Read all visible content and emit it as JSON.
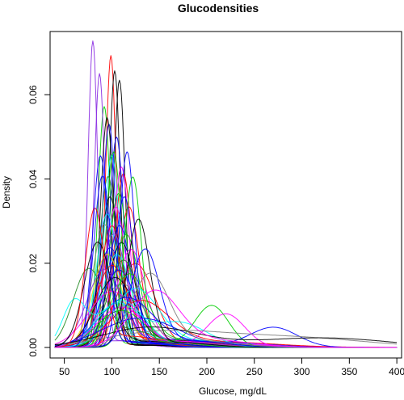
{
  "chart_data": {
    "type": "line",
    "title": "Glucodensities",
    "xlabel": "Glucose, mg/dL",
    "ylabel": "Density",
    "xlim": [
      35,
      405
    ],
    "ylim": [
      -0.0025,
      0.075
    ],
    "xticks": [
      50,
      100,
      150,
      200,
      250,
      300,
      350,
      400
    ],
    "yticks": [
      0.0,
      0.02,
      0.04,
      0.06
    ],
    "ytick_labels": [
      "0.00",
      "0.02",
      "0.04",
      "0.06"
    ],
    "grid": false,
    "legend": "none",
    "x_range_of_curves": [
      40,
      400
    ],
    "palette": [
      "#000000",
      "#FF0000",
      "#00CD00",
      "#0000FF",
      "#00FFFF",
      "#FF00FF",
      "#FFD700",
      "#808080",
      "#8A2BE2",
      "#228B22"
    ],
    "series": [
      {
        "components": [
          {
            "mu": 92,
            "sigma": 6.5,
            "w": 0.92
          },
          {
            "mu": 115,
            "sigma": 35,
            "w": 0.08
          }
        ],
        "color": "#00CD00"
      },
      {
        "components": [
          {
            "mu": 80,
            "sigma": 5,
            "w": 0.9
          },
          {
            "mu": 105,
            "sigma": 25,
            "w": 0.1
          }
        ],
        "color": "#8A2BE2"
      },
      {
        "components": [
          {
            "mu": 87,
            "sigma": 5.5,
            "w": 0.88
          },
          {
            "mu": 110,
            "sigma": 30,
            "w": 0.12
          }
        ],
        "color": "#8A2BE2"
      },
      {
        "components": [
          {
            "mu": 99,
            "sigma": 5.5,
            "w": 0.95
          },
          {
            "mu": 130,
            "sigma": 30,
            "w": 0.05
          }
        ],
        "color": "#FF0000"
      },
      {
        "components": [
          {
            "mu": 103,
            "sigma": 5.8,
            "w": 0.95
          },
          {
            "mu": 140,
            "sigma": 40,
            "w": 0.05
          }
        ],
        "color": "#000000"
      },
      {
        "components": [
          {
            "mu": 108,
            "sigma": 6,
            "w": 0.95
          },
          {
            "mu": 150,
            "sigma": 40,
            "w": 0.05
          }
        ],
        "color": "#000000"
      },
      {
        "components": [
          {
            "mu": 97,
            "sigma": 7,
            "w": 0.92
          },
          {
            "mu": 130,
            "sigma": 30,
            "w": 0.08
          }
        ],
        "color": "#0000FF"
      },
      {
        "components": [
          {
            "mu": 95,
            "sigma": 7,
            "w": 0.95
          },
          {
            "mu": 125,
            "sigma": 30,
            "w": 0.05
          }
        ],
        "color": "#000000"
      },
      {
        "components": [
          {
            "mu": 118,
            "sigma": 11,
            "w": 0.9
          },
          {
            "mu": 150,
            "sigma": 35,
            "w": 0.1
          }
        ],
        "color": "#FF0000"
      },
      {
        "components": [
          {
            "mu": 112,
            "sigma": 9,
            "w": 0.92
          },
          {
            "mu": 150,
            "sigma": 30,
            "w": 0.08
          }
        ],
        "color": "#FF0000"
      },
      {
        "components": [
          {
            "mu": 125,
            "sigma": 20,
            "w": 1.0
          }
        ],
        "color": "#FF0000"
      },
      {
        "components": [
          {
            "mu": 100,
            "sigma": 8,
            "w": 0.9
          },
          {
            "mu": 130,
            "sigma": 30,
            "w": 0.1
          }
        ],
        "color": "#00FFFF"
      },
      {
        "components": [
          {
            "mu": 105,
            "sigma": 7.5,
            "w": 0.93
          },
          {
            "mu": 140,
            "sigma": 35,
            "w": 0.07
          }
        ],
        "color": "#0000FF"
      },
      {
        "components": [
          {
            "mu": 102,
            "sigma": 8,
            "w": 0.92
          },
          {
            "mu": 135,
            "sigma": 30,
            "w": 0.08
          }
        ],
        "color": "#00CD00"
      },
      {
        "components": [
          {
            "mu": 110,
            "sigma": 8.5,
            "w": 0.9
          },
          {
            "mu": 150,
            "sigma": 35,
            "w": 0.1
          }
        ],
        "color": "#FF00FF"
      },
      {
        "components": [
          {
            "mu": 96,
            "sigma": 9,
            "w": 0.9
          },
          {
            "mu": 130,
            "sigma": 35,
            "w": 0.1
          }
        ],
        "color": "#228B22"
      },
      {
        "components": [
          {
            "mu": 90,
            "sigma": 9,
            "w": 0.9
          },
          {
            "mu": 120,
            "sigma": 30,
            "w": 0.1
          }
        ],
        "color": "#0000FF"
      },
      {
        "components": [
          {
            "mu": 98,
            "sigma": 10,
            "w": 0.88
          },
          {
            "mu": 140,
            "sigma": 35,
            "w": 0.12
          }
        ],
        "color": "#000000"
      },
      {
        "components": [
          {
            "mu": 107,
            "sigma": 10,
            "w": 0.9
          },
          {
            "mu": 145,
            "sigma": 35,
            "w": 0.1
          }
        ],
        "color": "#00CD00"
      },
      {
        "components": [
          {
            "mu": 113,
            "sigma": 10,
            "w": 0.88
          },
          {
            "mu": 155,
            "sigma": 35,
            "w": 0.12
          }
        ],
        "color": "#0000FF"
      },
      {
        "components": [
          {
            "mu": 104,
            "sigma": 11,
            "w": 0.9
          },
          {
            "mu": 140,
            "sigma": 35,
            "w": 0.1
          }
        ],
        "color": "#FF00FF"
      },
      {
        "components": [
          {
            "mu": 95,
            "sigma": 11,
            "w": 0.85
          },
          {
            "mu": 135,
            "sigma": 35,
            "w": 0.15
          }
        ],
        "color": "#00FFFF"
      },
      {
        "components": [
          {
            "mu": 100,
            "sigma": 12,
            "w": 0.85
          },
          {
            "mu": 150,
            "sigma": 35,
            "w": 0.15
          }
        ],
        "color": "#FF0000"
      },
      {
        "components": [
          {
            "mu": 108,
            "sigma": 12,
            "w": 0.85
          },
          {
            "mu": 155,
            "sigma": 35,
            "w": 0.15
          }
        ],
        "color": "#0000FF"
      },
      {
        "components": [
          {
            "mu": 115,
            "sigma": 13,
            "w": 0.85
          },
          {
            "mu": 160,
            "sigma": 35,
            "w": 0.15
          }
        ],
        "color": "#00CD00"
      },
      {
        "components": [
          {
            "mu": 92,
            "sigma": 12,
            "w": 0.85
          },
          {
            "mu": 130,
            "sigma": 35,
            "w": 0.15
          }
        ],
        "color": "#808080"
      },
      {
        "components": [
          {
            "mu": 102,
            "sigma": 13,
            "w": 0.85
          },
          {
            "mu": 145,
            "sigma": 40,
            "w": 0.15
          }
        ],
        "color": "#8A2BE2"
      },
      {
        "components": [
          {
            "mu": 110,
            "sigma": 14,
            "w": 0.85
          },
          {
            "mu": 160,
            "sigma": 40,
            "w": 0.15
          }
        ],
        "color": "#000000"
      },
      {
        "components": [
          {
            "mu": 98,
            "sigma": 14,
            "w": 0.8
          },
          {
            "mu": 150,
            "sigma": 40,
            "w": 0.2
          }
        ],
        "color": "#0000FF"
      },
      {
        "components": [
          {
            "mu": 120,
            "sigma": 15,
            "w": 0.85
          },
          {
            "mu": 170,
            "sigma": 40,
            "w": 0.15
          }
        ],
        "color": "#FF00FF"
      },
      {
        "components": [
          {
            "mu": 105,
            "sigma": 15,
            "w": 0.8
          },
          {
            "mu": 160,
            "sigma": 40,
            "w": 0.2
          }
        ],
        "color": "#00FFFF"
      },
      {
        "components": [
          {
            "mu": 95,
            "sigma": 15,
            "w": 0.8
          },
          {
            "mu": 150,
            "sigma": 45,
            "w": 0.2
          }
        ],
        "color": "#FFD700"
      },
      {
        "components": [
          {
            "mu": 112,
            "sigma": 16,
            "w": 0.8
          },
          {
            "mu": 170,
            "sigma": 45,
            "w": 0.2
          }
        ],
        "color": "#228B22"
      },
      {
        "components": [
          {
            "mu": 100,
            "sigma": 17,
            "w": 0.8
          },
          {
            "mu": 160,
            "sigma": 45,
            "w": 0.2
          }
        ],
        "color": "#FF0000"
      },
      {
        "components": [
          {
            "mu": 107,
            "sigma": 18,
            "w": 0.8
          },
          {
            "mu": 170,
            "sigma": 45,
            "w": 0.2
          }
        ],
        "color": "#0000FF"
      },
      {
        "components": [
          {
            "mu": 118,
            "sigma": 19,
            "w": 0.8
          },
          {
            "mu": 180,
            "sigma": 45,
            "w": 0.2
          }
        ],
        "color": "#00CD00"
      },
      {
        "components": [
          {
            "mu": 103,
            "sigma": 20,
            "w": 0.8
          },
          {
            "mu": 170,
            "sigma": 50,
            "w": 0.2
          }
        ],
        "color": "#000000"
      },
      {
        "components": [
          {
            "mu": 92,
            "sigma": 18,
            "w": 0.8
          },
          {
            "mu": 150,
            "sigma": 50,
            "w": 0.2
          }
        ],
        "color": "#8A2BE2"
      },
      {
        "components": [
          {
            "mu": 110,
            "sigma": 22,
            "w": 0.8
          },
          {
            "mu": 180,
            "sigma": 50,
            "w": 0.2
          }
        ],
        "color": "#808080"
      },
      {
        "components": [
          {
            "mu": 125,
            "sigma": 24,
            "w": 0.8
          },
          {
            "mu": 190,
            "sigma": 55,
            "w": 0.2
          }
        ],
        "color": "#00FFFF"
      },
      {
        "components": [
          {
            "mu": 100,
            "sigma": 25,
            "w": 0.8
          },
          {
            "mu": 180,
            "sigma": 60,
            "w": 0.2
          }
        ],
        "color": "#FF00FF"
      },
      {
        "components": [
          {
            "mu": 115,
            "sigma": 28,
            "w": 0.8
          },
          {
            "mu": 200,
            "sigma": 60,
            "w": 0.2
          }
        ],
        "color": "#0000FF"
      },
      {
        "components": [
          {
            "mu": 130,
            "sigma": 30,
            "w": 0.8
          },
          {
            "mu": 210,
            "sigma": 60,
            "w": 0.2
          }
        ],
        "color": "#FF0000"
      },
      {
        "components": [
          {
            "mu": 60,
            "sigma": 12,
            "w": 0.3
          },
          {
            "mu": 110,
            "sigma": 25,
            "w": 0.7
          }
        ],
        "color": "#00FFFF"
      },
      {
        "components": [
          {
            "mu": 105,
            "sigma": 22,
            "w": 0.55
          },
          {
            "mu": 170,
            "sigma": 30,
            "w": 0.45
          }
        ],
        "color": "#00FFFF"
      },
      {
        "components": [
          {
            "mu": 110,
            "sigma": 25,
            "w": 0.55
          },
          {
            "mu": 205,
            "sigma": 18,
            "w": 0.45
          }
        ],
        "color": "#00CD00"
      },
      {
        "components": [
          {
            "mu": 110,
            "sigma": 25,
            "w": 0.6
          },
          {
            "mu": 220,
            "sigma": 20,
            "w": 0.4
          }
        ],
        "color": "#FF00FF"
      },
      {
        "components": [
          {
            "mu": 130,
            "sigma": 40,
            "w": 0.7
          },
          {
            "mu": 270,
            "sigma": 25,
            "w": 0.3
          }
        ],
        "color": "#0000FF"
      },
      {
        "components": [
          {
            "mu": 150,
            "sigma": 60,
            "w": 0.5
          },
          {
            "mu": 280,
            "sigma": 80,
            "w": 0.5
          }
        ],
        "color": "#808080"
      },
      {
        "components": [
          {
            "mu": 140,
            "sigma": 50,
            "w": 0.6
          },
          {
            "mu": 320,
            "sigma": 70,
            "w": 0.4
          }
        ],
        "color": "#000000"
      },
      {
        "components": [
          {
            "mu": 85,
            "sigma": 14,
            "w": 0.85
          },
          {
            "mu": 130,
            "sigma": 40,
            "w": 0.15
          }
        ],
        "color": "#000000"
      },
      {
        "components": [
          {
            "mu": 75,
            "sigma": 16,
            "w": 0.7
          },
          {
            "mu": 120,
            "sigma": 30,
            "w": 0.3
          }
        ],
        "color": "#228B22"
      },
      {
        "components": [
          {
            "mu": 82,
            "sigma": 10,
            "w": 0.8
          },
          {
            "mu": 120,
            "sigma": 30,
            "w": 0.2
          }
        ],
        "color": "#FF0000"
      },
      {
        "components": [
          {
            "mu": 88,
            "sigma": 8,
            "w": 0.9
          },
          {
            "mu": 125,
            "sigma": 30,
            "w": 0.1
          }
        ],
        "color": "#0000FF"
      },
      {
        "components": [
          {
            "mu": 116,
            "sigma": 8,
            "w": 0.92
          },
          {
            "mu": 150,
            "sigma": 30,
            "w": 0.08
          }
        ],
        "color": "#0000FF"
      },
      {
        "components": [
          {
            "mu": 122,
            "sigma": 9,
            "w": 0.9
          },
          {
            "mu": 160,
            "sigma": 30,
            "w": 0.1
          }
        ],
        "color": "#00CD00"
      },
      {
        "components": [
          {
            "mu": 128,
            "sigma": 12,
            "w": 0.9
          },
          {
            "mu": 170,
            "sigma": 35,
            "w": 0.1
          }
        ],
        "color": "#000000"
      },
      {
        "components": [
          {
            "mu": 135,
            "sigma": 15,
            "w": 0.85
          },
          {
            "mu": 180,
            "sigma": 40,
            "w": 0.15
          }
        ],
        "color": "#0000FF"
      },
      {
        "components": [
          {
            "mu": 140,
            "sigma": 20,
            "w": 0.85
          },
          {
            "mu": 190,
            "sigma": 40,
            "w": 0.15
          }
        ],
        "color": "#808080"
      },
      {
        "components": [
          {
            "mu": 145,
            "sigma": 25,
            "w": 0.8
          },
          {
            "mu": 200,
            "sigma": 45,
            "w": 0.2
          }
        ],
        "color": "#FF00FF"
      }
    ]
  }
}
